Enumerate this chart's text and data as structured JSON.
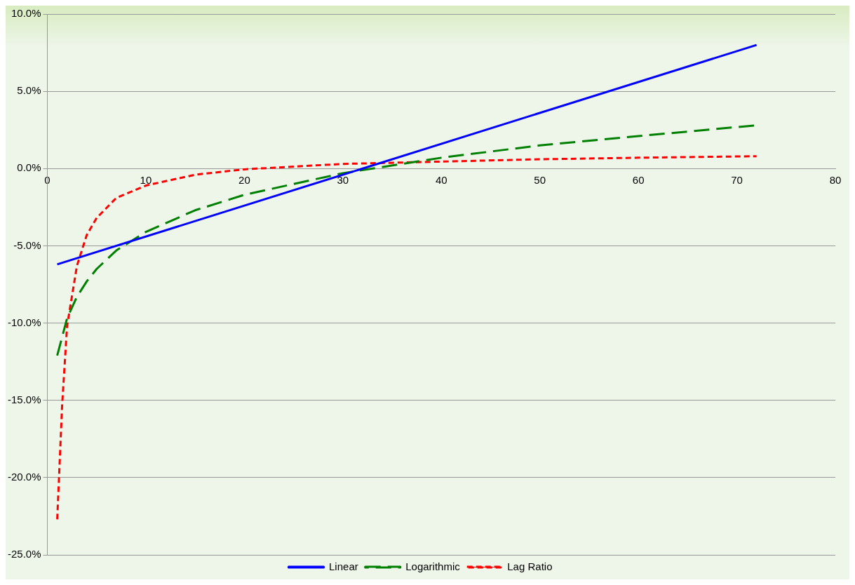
{
  "chart_data": {
    "type": "line",
    "xlim": [
      0,
      80
    ],
    "xticks": [
      0,
      10,
      20,
      30,
      40,
      50,
      60,
      70,
      80
    ],
    "ylim": [
      -25,
      10
    ],
    "yticks": [
      {
        "value": -25,
        "label": "-25.0%"
      },
      {
        "value": -20,
        "label": "-20.0%"
      },
      {
        "value": -15,
        "label": "-15.0%"
      },
      {
        "value": -10,
        "label": "-10.0%"
      },
      {
        "value": -5,
        "label": "-5.0%"
      },
      {
        "value": 0,
        "label": "0.0%"
      },
      {
        "value": 5,
        "label": "5.0%"
      },
      {
        "value": 10,
        "label": "10.0%"
      }
    ],
    "grid": "y",
    "legend": "bottom",
    "marker": "none",
    "series": [
      {
        "name": "Linear",
        "color": "#0000ff",
        "line_style": "solid",
        "x": [
          1,
          72
        ],
        "values": [
          -6.2,
          8.0
        ]
      },
      {
        "name": "Logarithmic",
        "color": "#008000",
        "line_style": "dashed",
        "x": [
          1,
          2,
          3,
          4,
          5,
          7,
          10,
          15,
          20,
          30,
          40,
          50,
          60,
          72
        ],
        "values": [
          -12.1,
          -9.7,
          -8.3,
          -7.3,
          -6.5,
          -5.3,
          -4.1,
          -2.7,
          -1.7,
          -0.3,
          0.7,
          1.5,
          2.1,
          2.8
        ]
      },
      {
        "name": "Lag Ratio",
        "color": "#ff0000",
        "line_style": "dotted",
        "x": [
          1,
          1.5,
          2,
          3,
          4,
          5,
          7,
          10,
          15,
          20,
          30,
          40,
          50,
          60,
          72
        ],
        "values": [
          -22.7,
          -15.3,
          -10.2,
          -6.3,
          -4.3,
          -3.2,
          -1.9,
          -1.1,
          -0.4,
          -0.05,
          0.3,
          0.45,
          0.6,
          0.7,
          0.8
        ]
      }
    ]
  }
}
